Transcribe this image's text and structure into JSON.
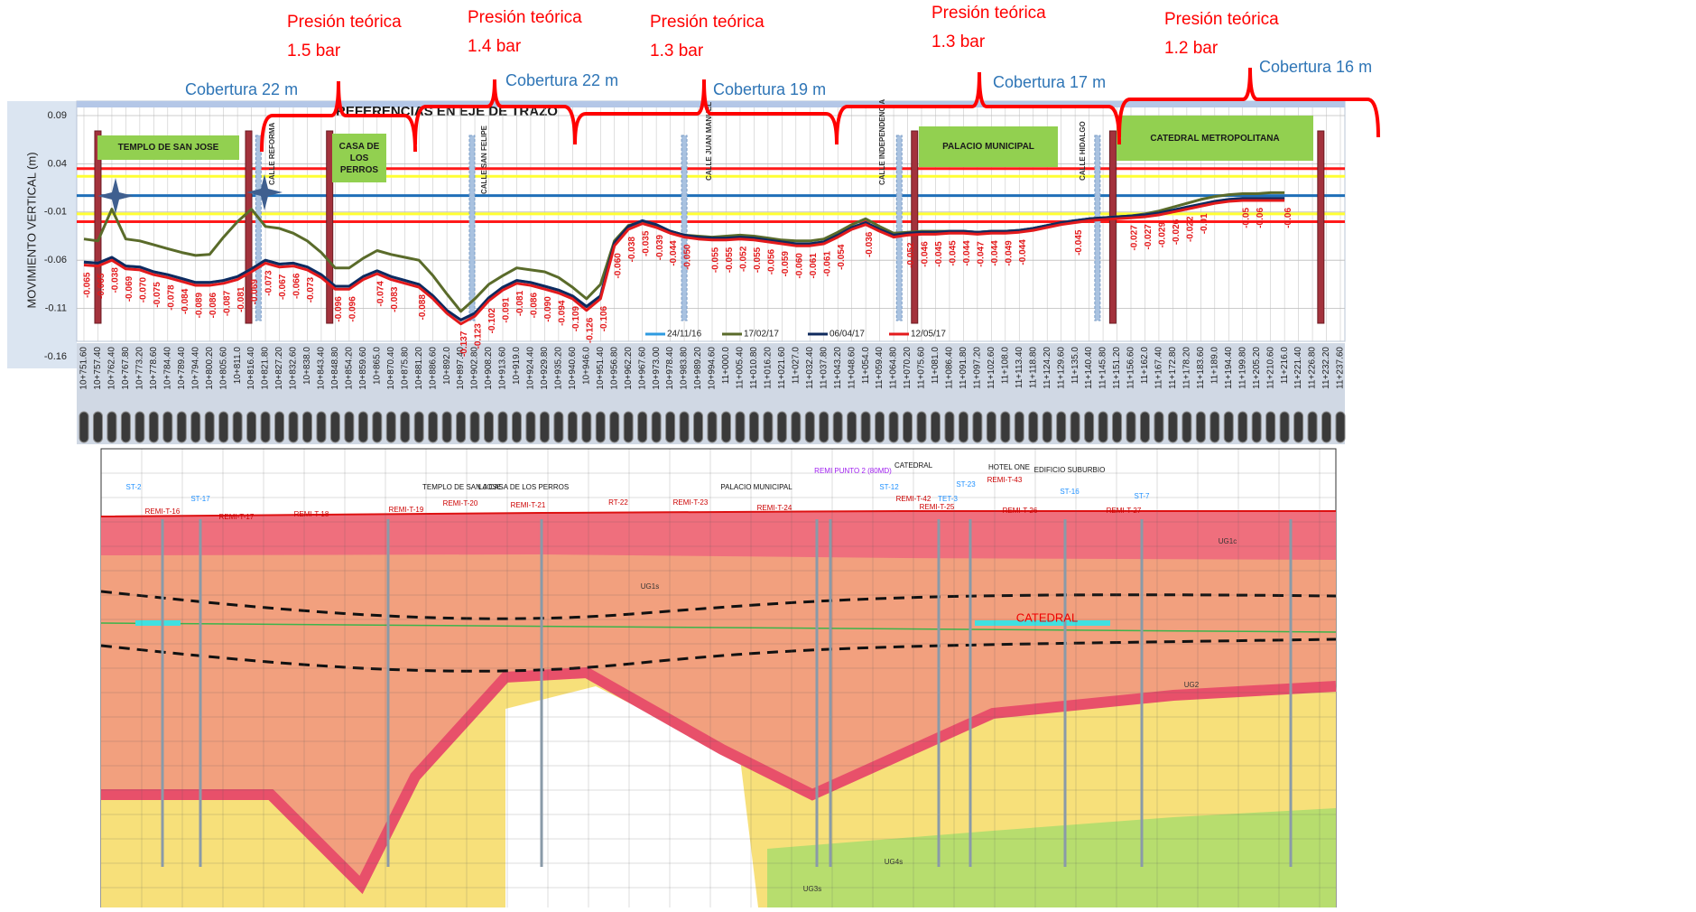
{
  "chart_data": {
    "type": "line",
    "title": "REFERENCIAS EN EJE DE TRAZO",
    "y_label": "MOVIMIENTO VERTICAL (m)",
    "ylim": [
      -0.16,
      0.1
    ],
    "yticks": [
      0.09,
      0.04,
      -0.01,
      -0.06,
      -0.11,
      -0.16
    ],
    "grid": true,
    "legend": "bottom",
    "categories": [
      "10+751.60",
      "10+757.40",
      "10+762.40",
      "10+767.80",
      "10+773.20",
      "10+778.60",
      "10+784.40",
      "10+789.40",
      "10+794.40",
      "10+800.20",
      "10+805.60",
      "10+811.0",
      "10+816.40",
      "10+821.80",
      "10+827.20",
      "10+832.60",
      "10+838.0",
      "10+843.40",
      "10+848.80",
      "10+854.20",
      "10+859.60",
      "10+865.0",
      "10+870.40",
      "10+875.80",
      "10+881.20",
      "10+886.60",
      "10+892.0",
      "10+897.40",
      "10+902.80",
      "10+908.20",
      "10+913.60",
      "10+919.0",
      "10+924.40",
      "10+929.80",
      "10+935.20",
      "10+940.60",
      "10+946.0",
      "10+951.40",
      "10+956.80",
      "10+962.20",
      "10+967.60",
      "10+973.00",
      "10+978.40",
      "10+983.80",
      "10+989.20",
      "10+994.60",
      "11+000.0",
      "11+005.40",
      "11+010.80",
      "11+016.20",
      "11+021.60",
      "11+027.0",
      "11+032.40",
      "11+037.80",
      "11+043.20",
      "11+048.60",
      "11+054.0",
      "11+059.40",
      "11+064.80",
      "11+070.20",
      "11+075.60",
      "11+081.0",
      "11+086.40",
      "11+091.80",
      "11+097.20",
      "11+102.60",
      "11+108.0",
      "11+113.40",
      "11+118.80",
      "11+124.20",
      "11+129.60",
      "11+135.0",
      "11+140.40",
      "11+145.80",
      "11+151.20",
      "11+156.60",
      "11+162.0",
      "11+167.40",
      "11+172.80",
      "11+178.20",
      "11+183.60",
      "11+189.0",
      "11+194.40",
      "11+199.80",
      "11+205.20",
      "11+210.60",
      "11+216.0",
      "11+221.40",
      "11+226.80",
      "11+232.20",
      "11+237.60"
    ],
    "series": [
      {
        "name": "24/11/16",
        "color": "#2e9be0",
        "values": [
          -0.062,
          -0.063,
          -0.057,
          -0.066,
          -0.067,
          -0.072,
          -0.075,
          -0.079,
          -0.083,
          -0.083,
          -0.081,
          -0.077,
          -0.069,
          -0.06,
          -0.064,
          -0.063,
          -0.067,
          -0.075,
          -0.087,
          -0.087,
          -0.077,
          -0.071,
          -0.077,
          -0.081,
          -0.085,
          -0.097,
          -0.112,
          -0.122,
          -0.115,
          -0.099,
          -0.088,
          -0.081,
          -0.083,
          -0.087,
          -0.091,
          -0.097,
          -0.108,
          -0.097,
          -0.042,
          -0.025,
          -0.019,
          -0.023,
          -0.03,
          -0.034,
          -0.036,
          -0.037,
          -0.037,
          -0.036,
          -0.037,
          -0.039,
          -0.041,
          -0.043,
          -0.043,
          -0.041,
          -0.034,
          -0.026,
          -0.021,
          -0.028,
          -0.034,
          -0.032,
          -0.031,
          -0.031,
          -0.03,
          -0.03,
          -0.031,
          -0.03,
          -0.03,
          -0.029,
          -0.027,
          -0.024,
          -0.021,
          -0.019,
          -0.017,
          -0.016,
          -0.015,
          -0.014,
          -0.013,
          -0.011,
          -0.008,
          -0.005,
          -0.002,
          0.001,
          0.003,
          0.004,
          0.004,
          0.004,
          0.004,
          null,
          null,
          null,
          null
        ]
      },
      {
        "name": "17/02/17",
        "color": "#5a6b2a",
        "values": [
          -0.038,
          -0.04,
          -0.007,
          -0.038,
          -0.04,
          -0.044,
          -0.048,
          -0.052,
          -0.055,
          -0.054,
          -0.036,
          -0.02,
          -0.007,
          -0.025,
          -0.027,
          -0.032,
          -0.04,
          -0.052,
          -0.068,
          -0.068,
          -0.058,
          -0.05,
          -0.054,
          -0.057,
          -0.06,
          -0.076,
          -0.095,
          -0.113,
          -0.1,
          -0.085,
          -0.076,
          -0.068,
          -0.07,
          -0.072,
          -0.078,
          -0.088,
          -0.1,
          -0.085,
          -0.04,
          -0.024,
          -0.02,
          -0.024,
          -0.03,
          -0.034,
          -0.035,
          -0.036,
          -0.035,
          -0.034,
          -0.035,
          -0.037,
          -0.039,
          -0.04,
          -0.04,
          -0.038,
          -0.031,
          -0.023,
          -0.017,
          -0.025,
          -0.032,
          -0.031,
          -0.03,
          -0.03,
          -0.03,
          -0.03,
          -0.031,
          -0.03,
          -0.03,
          -0.029,
          -0.027,
          -0.024,
          -0.021,
          -0.019,
          -0.017,
          -0.016,
          -0.015,
          -0.014,
          -0.012,
          -0.009,
          -0.005,
          -0.001,
          0.003,
          0.006,
          0.008,
          0.009,
          0.009,
          0.01,
          0.01,
          null,
          null,
          null,
          null
        ]
      },
      {
        "name": "06/04/17",
        "color": "#0f2a5e",
        "values": [
          -0.062,
          -0.063,
          -0.057,
          -0.066,
          -0.067,
          -0.072,
          -0.075,
          -0.079,
          -0.083,
          -0.083,
          -0.081,
          -0.077,
          -0.069,
          -0.06,
          -0.064,
          -0.063,
          -0.067,
          -0.075,
          -0.087,
          -0.087,
          -0.077,
          -0.071,
          -0.077,
          -0.081,
          -0.085,
          -0.097,
          -0.112,
          -0.122,
          -0.115,
          -0.099,
          -0.088,
          -0.081,
          -0.083,
          -0.087,
          -0.091,
          -0.097,
          -0.108,
          -0.097,
          -0.042,
          -0.025,
          -0.019,
          -0.023,
          -0.03,
          -0.034,
          -0.036,
          -0.037,
          -0.037,
          -0.036,
          -0.037,
          -0.039,
          -0.041,
          -0.043,
          -0.043,
          -0.041,
          -0.034,
          -0.026,
          -0.021,
          -0.028,
          -0.034,
          -0.032,
          -0.031,
          -0.031,
          -0.03,
          -0.03,
          -0.031,
          -0.03,
          -0.03,
          -0.029,
          -0.027,
          -0.024,
          -0.021,
          -0.019,
          -0.017,
          -0.016,
          -0.015,
          -0.014,
          -0.013,
          -0.011,
          -0.008,
          -0.005,
          -0.002,
          0.001,
          0.003,
          0.004,
          0.004,
          0.004,
          0.004,
          null,
          null,
          null,
          null
        ]
      },
      {
        "name": "12/05/17",
        "color": "#e31a1c",
        "values": [
          -0.065,
          -0.066,
          -0.06,
          -0.069,
          -0.07,
          -0.075,
          -0.078,
          -0.082,
          -0.086,
          -0.086,
          -0.084,
          -0.08,
          -0.072,
          -0.063,
          -0.067,
          -0.066,
          -0.07,
          -0.078,
          -0.09,
          -0.09,
          -0.08,
          -0.074,
          -0.08,
          -0.084,
          -0.088,
          -0.1,
          -0.115,
          -0.126,
          -0.118,
          -0.102,
          -0.091,
          -0.084,
          -0.086,
          -0.09,
          -0.094,
          -0.1,
          -0.112,
          -0.1,
          -0.045,
          -0.028,
          -0.022,
          -0.026,
          -0.032,
          -0.036,
          -0.038,
          -0.039,
          -0.039,
          -0.038,
          -0.039,
          -0.041,
          -0.043,
          -0.045,
          -0.045,
          -0.043,
          -0.036,
          -0.028,
          -0.023,
          -0.03,
          -0.036,
          -0.034,
          -0.033,
          -0.033,
          -0.032,
          -0.032,
          -0.033,
          -0.032,
          -0.032,
          -0.031,
          -0.029,
          -0.026,
          -0.023,
          -0.021,
          -0.019,
          -0.018,
          -0.017,
          -0.016,
          -0.015,
          -0.013,
          -0.01,
          -0.007,
          -0.004,
          -0.001,
          0.001,
          0.002,
          0.002,
          0.002,
          0.002,
          null,
          null,
          null,
          null
        ]
      }
    ],
    "point_labels": [
      "-0.065",
      "-0.065",
      "-0.038",
      "-0.069",
      "-0.070",
      "-0.075",
      "-0.078",
      "-0.084",
      "-0.089",
      "-0.086",
      "-0.087",
      "-0.081",
      "-0.069",
      "-0.073",
      "-0.067",
      "-0.066",
      "-0.073",
      null,
      "-0.096",
      "-0.096",
      null,
      "-0.074",
      "-0.083",
      null,
      "-0.088",
      null,
      null,
      "-0.137",
      "-0.123",
      "-0.102",
      "-0.091",
      "-0.081",
      "-0.086",
      "-0.090",
      "-0.094",
      "-0.109",
      "-0.126",
      "-0.106",
      "-0.060",
      "-0.038",
      "-0.035",
      "-0.039",
      "-0.044",
      "-0.050",
      null,
      "-0.055",
      "-0.055",
      "-0.052",
      "-0.055",
      "-0.056",
      "-0.059",
      "-0.060",
      "-0.061",
      "-0.061",
      "-0.054",
      null,
      "-0.036",
      null,
      null,
      "-0.052",
      "-0.046",
      "-0.045",
      "-0.045",
      "-0.044",
      "-0.047",
      "-0.044",
      "-0.049",
      "-0.044",
      null,
      null,
      null,
      "-0.045",
      null,
      null,
      null,
      "-0.027",
      "-0.027",
      "-0.029",
      "-0.026",
      "-0.022",
      "-0.01",
      null,
      null,
      "-0.05",
      "-0.06",
      null,
      "-0.06",
      null,
      null,
      null,
      null
    ],
    "point_label_color": "#e31a1c",
    "reference_lines": [
      {
        "value": 0.035,
        "color": "#ff1a1a"
      },
      {
        "value": 0.027,
        "color": "#ffff33"
      },
      {
        "value": 0.007,
        "color": "#1f6fb8"
      },
      {
        "value": -0.012,
        "color": "#ffff33"
      },
      {
        "value": -0.02,
        "color": "#ff1a1a"
      }
    ],
    "structures": [
      "TEMPLO DE SAN JOSE",
      "CASA DE LOS PERROS",
      "PALACIO MUNICIPAL",
      "CATEDRAL METROPOLITANA"
    ],
    "streets": [
      "CALLE REFORMA",
      "CALLE SAN FELIPE",
      "CALLE JUAN MANUEL",
      "CALLE INDEPENDENCIA",
      "CALLE HIDALGO"
    ],
    "pressure_notes": [
      {
        "text": "Presión teórica",
        "value": "1.5 bar"
      },
      {
        "text": "Presión teórica",
        "value": "1.4 bar"
      },
      {
        "text": "Presión teórica",
        "value": "1.3 bar"
      },
      {
        "text": "Presión teórica",
        "value": "1.3 bar"
      },
      {
        "text": "Presión teórica",
        "value": "1.2 bar"
      }
    ],
    "cover_notes": [
      "Cobertura 22 m",
      "Cobertura 22 m",
      "Cobertura 19 m",
      "Cobertura 17 m",
      "Cobertura 16 m"
    ]
  },
  "section": {
    "labels": [
      "ST-2",
      "ST-17",
      "REMI-T-16",
      "REMI-T-17",
      "REMI-T-18",
      "REMI-T-19",
      "TEMPLO DE SAN JOSE",
      "LA CASA DE LOS PERROS",
      "REMI-T-20",
      "REMI-T-21",
      "RT-22",
      "REMI-T-23",
      "PALACIO MUNICIPAL",
      "REMI-T-24",
      "REMI PUNTO 2 (80MD)",
      "CATEDRAL",
      "ST-12",
      "REMI-T-42",
      "TET-3",
      "ST-23",
      "REMI-T-25",
      "HOTEL ONE",
      "REMI-T-43",
      "REMI-T-26",
      "EDIFICIO SUBURBIO",
      "ST-16",
      "ST-7",
      "REMI-T-27",
      "UG1s",
      "UG1c",
      "UG2",
      "UG3s",
      "UG4s",
      "CATEDRAL"
    ]
  }
}
